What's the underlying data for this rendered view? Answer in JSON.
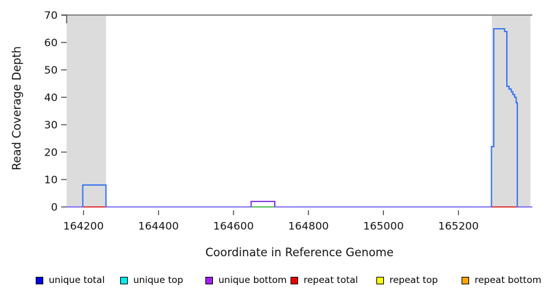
{
  "chart_data": {
    "type": "line",
    "title": "",
    "xlabel": "Coordinate in Reference Genome",
    "ylabel": "Read Coverage Depth",
    "xlim": [
      164155,
      165397
    ],
    "ylim": [
      0,
      70
    ],
    "xticks": [
      164200,
      164400,
      164600,
      164800,
      165000,
      165200
    ],
    "yticks": [
      0,
      10,
      20,
      30,
      40,
      50,
      60,
      70
    ],
    "grid": false,
    "legend_position": "bottom",
    "top_border_color": "#8a8a8a",
    "axis_tick_color": "#4d4d4d",
    "highlight_regions": [
      {
        "name": "masked-region-left",
        "start": 164155,
        "end": 164260,
        "color": "#dcdcdc"
      },
      {
        "name": "masked-region-right",
        "start": 165289,
        "end": 165392,
        "color": "#dcdcdc"
      }
    ],
    "baseline_segments": [
      {
        "x1": 164155,
        "x2": 164198,
        "color": "#7d6bf5"
      },
      {
        "x1": 164198,
        "x2": 164260,
        "color": "#e03030"
      },
      {
        "x1": 164260,
        "x2": 164647,
        "color": "#7d6bf5"
      },
      {
        "x1": 164647,
        "x2": 164710,
        "color": "#4cbb4c"
      },
      {
        "x1": 164710,
        "x2": 165288,
        "color": "#7d6bf5"
      },
      {
        "x1": 165288,
        "x2": 165357,
        "color": "#e03030"
      },
      {
        "x1": 165357,
        "x2": 165397,
        "color": "#7d6bf5"
      }
    ],
    "features": [
      {
        "name": "unique-coverage-box",
        "series": "unique total",
        "color": "#2e6ef2",
        "line_width": 1.8,
        "points": [
          [
            164198,
            0
          ],
          [
            164198,
            8
          ],
          [
            164260,
            8
          ],
          [
            164260,
            0
          ]
        ]
      },
      {
        "name": "unique-bottom-bump",
        "series": "unique bottom",
        "color": "#7b2be0",
        "line_width": 1.8,
        "points": [
          [
            164647,
            0
          ],
          [
            164647,
            2
          ],
          [
            164710,
            2
          ],
          [
            164710,
            0
          ]
        ]
      },
      {
        "name": "unique-coverage-peak",
        "series": "unique total",
        "color": "#2e6ef2",
        "line_width": 1.8,
        "points": [
          [
            165288,
            0
          ],
          [
            165288,
            22
          ],
          [
            165294,
            22
          ],
          [
            165294,
            65
          ],
          [
            165323,
            65
          ],
          [
            165323,
            64
          ],
          [
            165329,
            64
          ],
          [
            165329,
            44
          ],
          [
            165335,
            44
          ],
          [
            165335,
            43
          ],
          [
            165341,
            43
          ],
          [
            165341,
            42
          ],
          [
            165345,
            42
          ],
          [
            165345,
            41
          ],
          [
            165350,
            41
          ],
          [
            165350,
            40
          ],
          [
            165354,
            40
          ],
          [
            165354,
            38
          ],
          [
            165357,
            38
          ],
          [
            165357,
            0
          ]
        ]
      }
    ],
    "legend": [
      {
        "label": "unique total",
        "color": "#0000ee"
      },
      {
        "label": "unique top",
        "color": "#00eeee"
      },
      {
        "label": "unique bottom",
        "color": "#a020f0"
      },
      {
        "label": "repeat total",
        "color": "#ee0000"
      },
      {
        "label": "repeat top",
        "color": "#ffff00"
      },
      {
        "label": "repeat bottom",
        "color": "#ffa500"
      }
    ]
  }
}
